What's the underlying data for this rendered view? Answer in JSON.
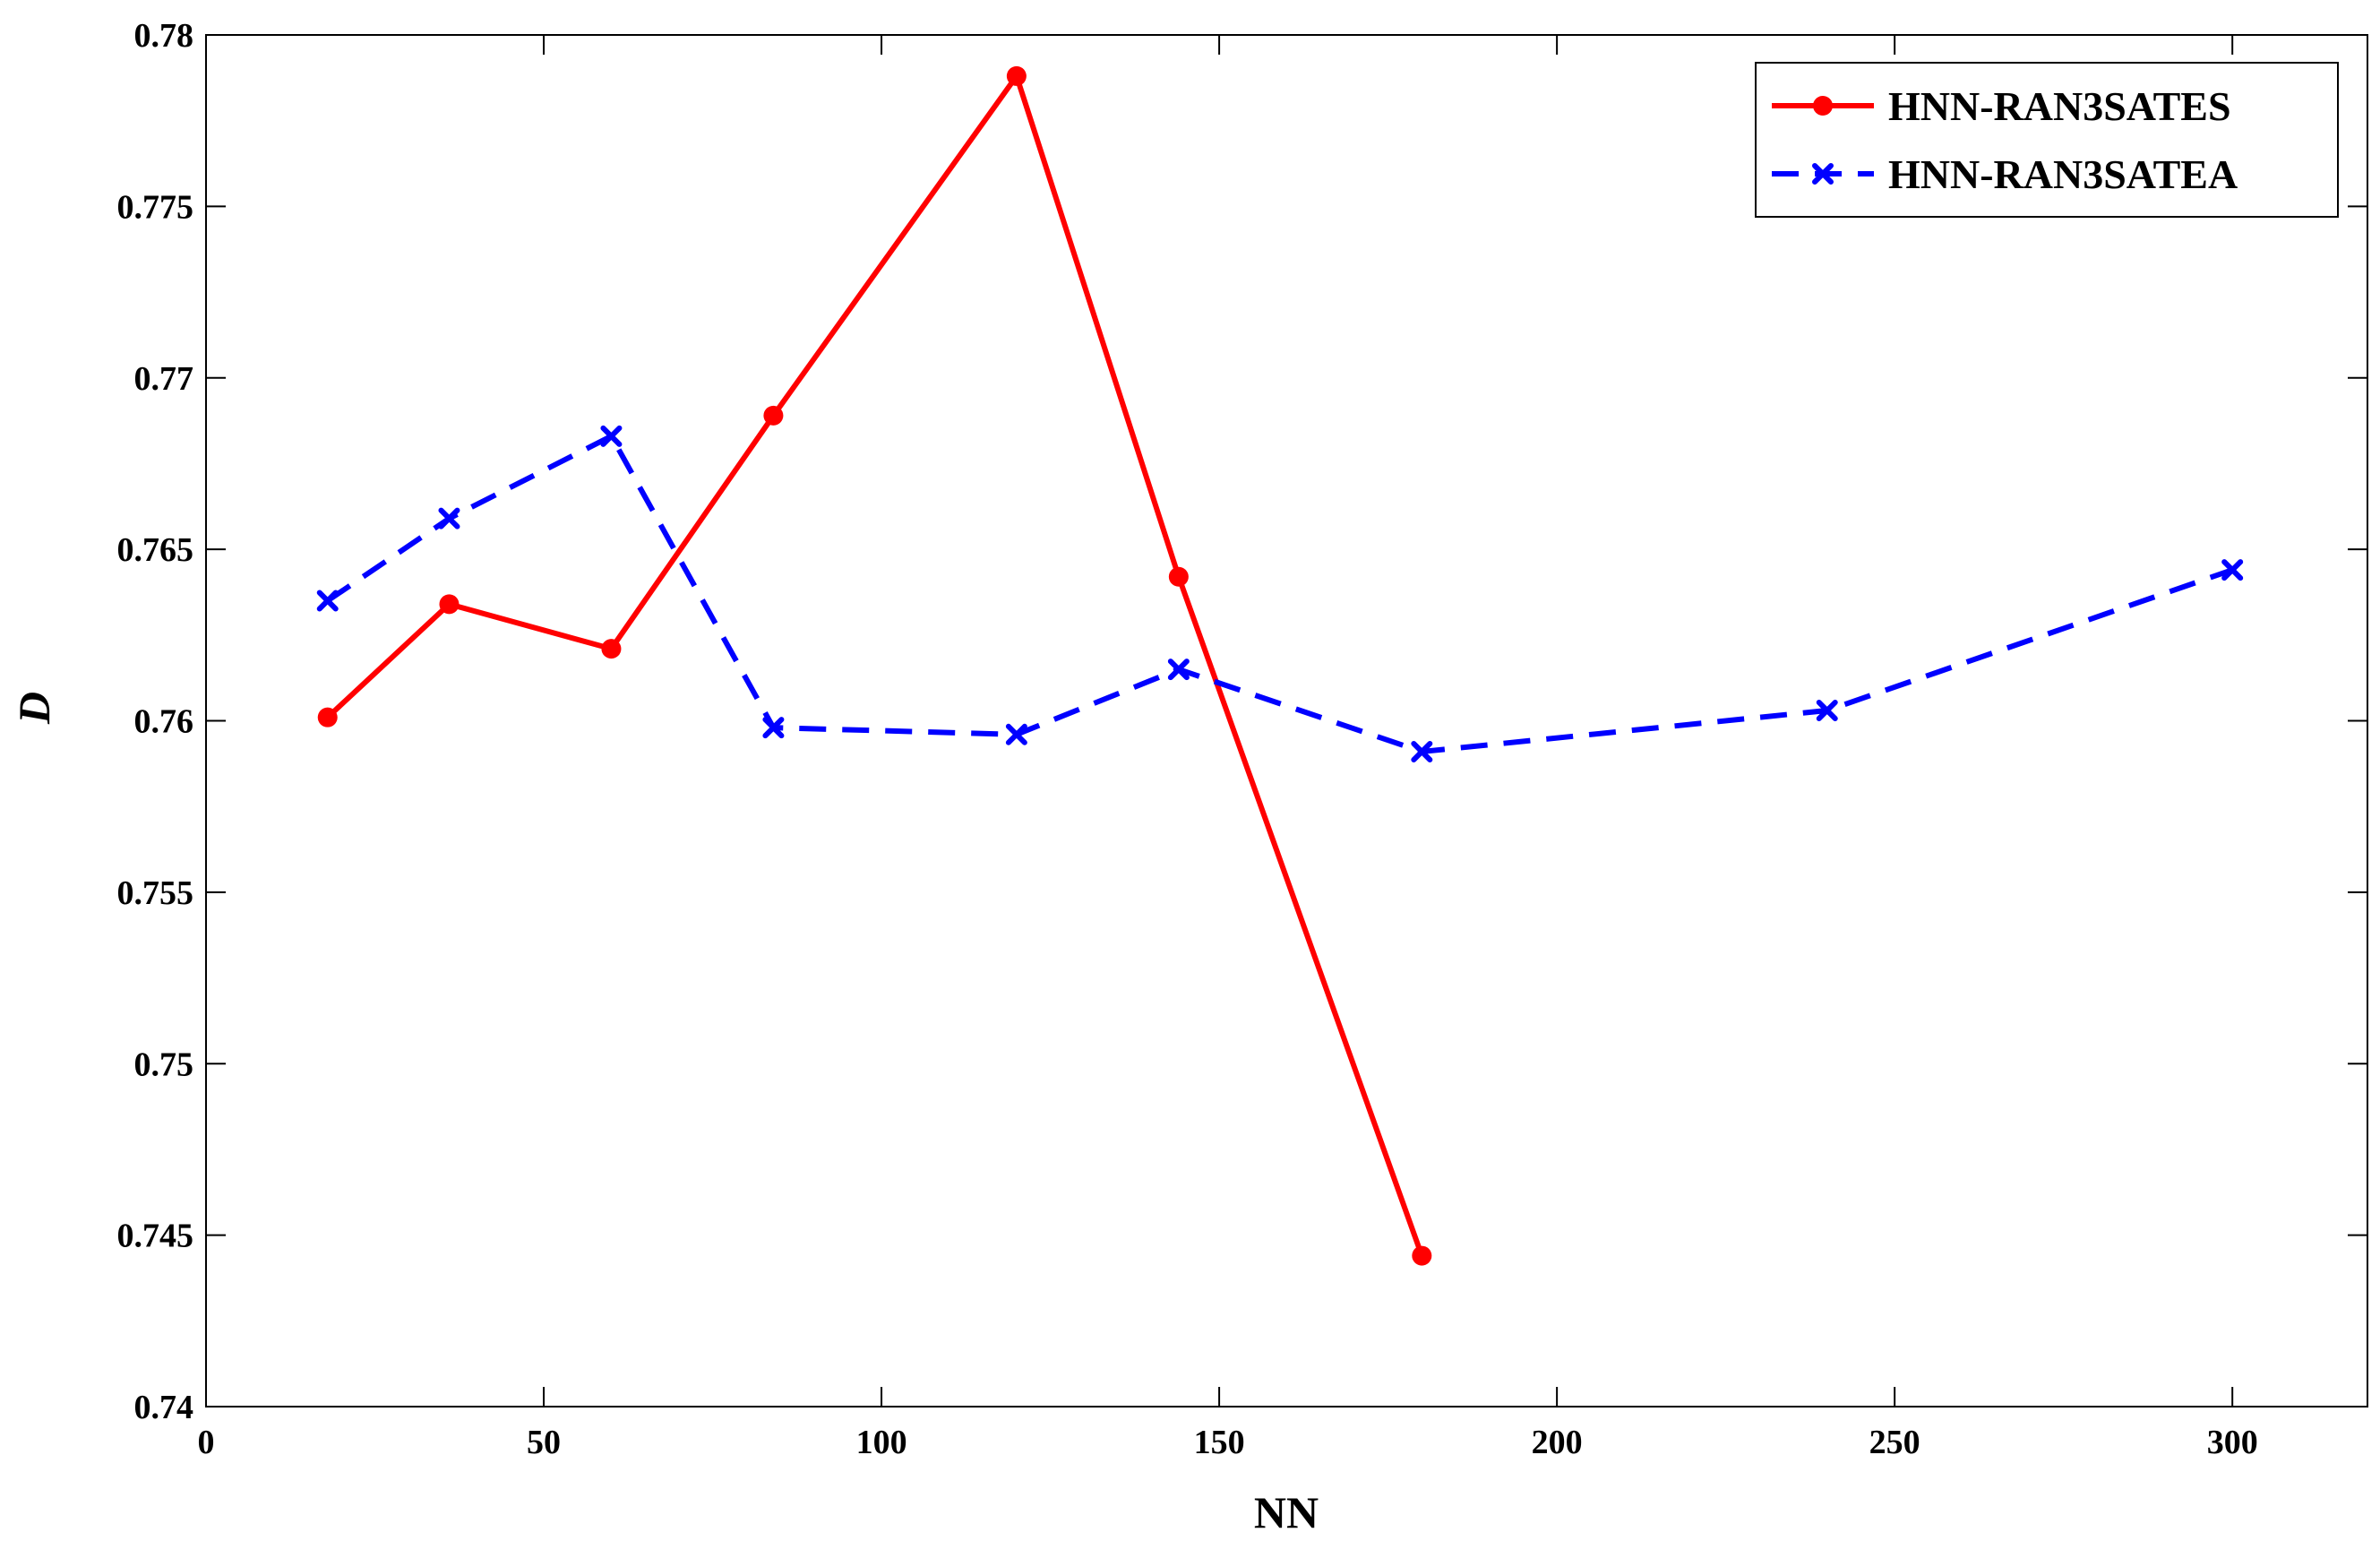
{
  "chart_data": {
    "type": "line",
    "title": "",
    "xlabel": "NN",
    "ylabel": "D",
    "xlim": [
      0,
      320
    ],
    "ylim": [
      0.74,
      0.78
    ],
    "xticks": [
      0,
      50,
      100,
      150,
      200,
      250,
      300
    ],
    "yticks": [
      0.74,
      0.745,
      0.75,
      0.755,
      0.76,
      0.765,
      0.77,
      0.775,
      0.78
    ],
    "xtick_labels": [
      "0",
      "50",
      "100",
      "150",
      "200",
      "250",
      "300"
    ],
    "ytick_labels": [
      "0.74",
      "0.745",
      "0.75",
      "0.755",
      "0.76",
      "0.765",
      "0.77",
      "0.775",
      "0.78"
    ],
    "grid": false,
    "legend_position": "top-right",
    "series": [
      {
        "name": "HNN-RAN3SATES",
        "color": "#ff0000",
        "line_style": "solid",
        "marker": "circle",
        "x": [
          18,
          36,
          60,
          84,
          120,
          144,
          180
        ],
        "y": [
          0.7601,
          0.7634,
          0.7621,
          0.7689,
          0.7788,
          0.7642,
          0.7444
        ]
      },
      {
        "name": "HNN-RAN3SATEA",
        "color": "#0000ff",
        "line_style": "dashed",
        "marker": "x",
        "x": [
          18,
          36,
          60,
          84,
          120,
          144,
          180,
          240,
          300
        ],
        "y": [
          0.7635,
          0.7659,
          0.7683,
          0.7598,
          0.7596,
          0.7615,
          0.7591,
          0.7603,
          0.7644
        ]
      }
    ]
  }
}
